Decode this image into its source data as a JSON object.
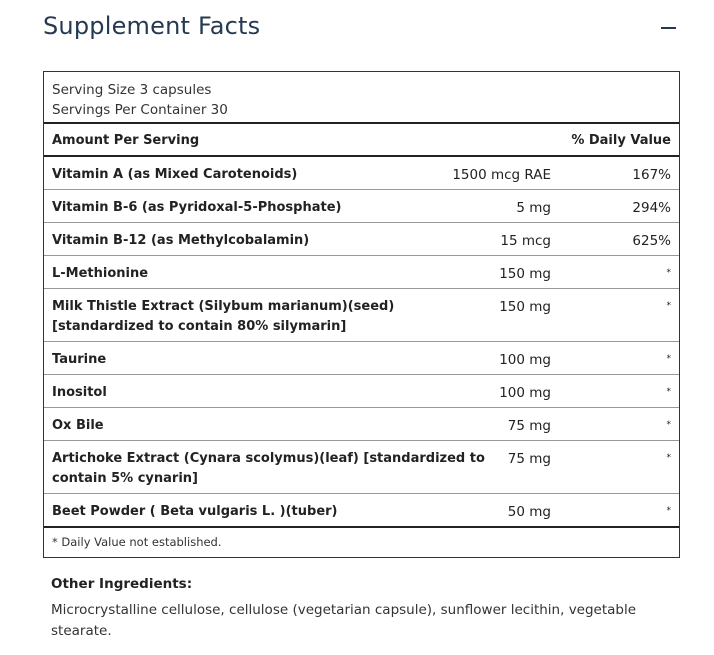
{
  "title": "Supplement Facts",
  "serving": {
    "size": "Serving Size 3 capsules",
    "servings": "Servings Per Container 30"
  },
  "header": {
    "amount": "Amount Per Serving",
    "daily_value": "% Daily Value"
  },
  "rows": [
    {
      "name": "Vitamin A (as Mixed Carotenoids)",
      "amount": "1500 mcg RAE",
      "dv": "167%"
    },
    {
      "name": "Vitamin B-6 (as Pyridoxal-5-Phosphate)",
      "amount": "5 mg",
      "dv": "294%"
    },
    {
      "name": "Vitamin B-12 (as Methylcobalamin)",
      "amount": "15 mcg",
      "dv": "625%"
    },
    {
      "name": "L-Methionine",
      "amount": "150 mg",
      "dv": "*"
    },
    {
      "name": "Milk Thistle Extract (Silybum marianum)(seed) [standardized to contain 80% silymarin]",
      "amount": "150 mg",
      "dv": "*"
    },
    {
      "name": "Taurine",
      "amount": "100 mg",
      "dv": "*"
    },
    {
      "name": "Inositol",
      "amount": "100 mg",
      "dv": "*"
    },
    {
      "name": "Ox Bile",
      "amount": "75 mg",
      "dv": "*"
    },
    {
      "name": "Artichoke Extract (Cynara scolymus)(leaf) [standardized to contain 5% cynarin]",
      "amount": "75 mg",
      "dv": "*"
    },
    {
      "name": "Beet Powder ( Beta vulgaris L. )(tuber)",
      "amount": "50 mg",
      "dv": "*"
    }
  ],
  "footnote": "* Daily Value not established.",
  "other_ingredients": {
    "heading": "Other Ingredients:",
    "text": "Microcrystalline cellulose, cellulose (vegetarian capsule), sunflower lecithin, vegetable stearate."
  },
  "icons": {
    "collapse": "minus-icon"
  },
  "colors": {
    "title": "#253a52"
  }
}
